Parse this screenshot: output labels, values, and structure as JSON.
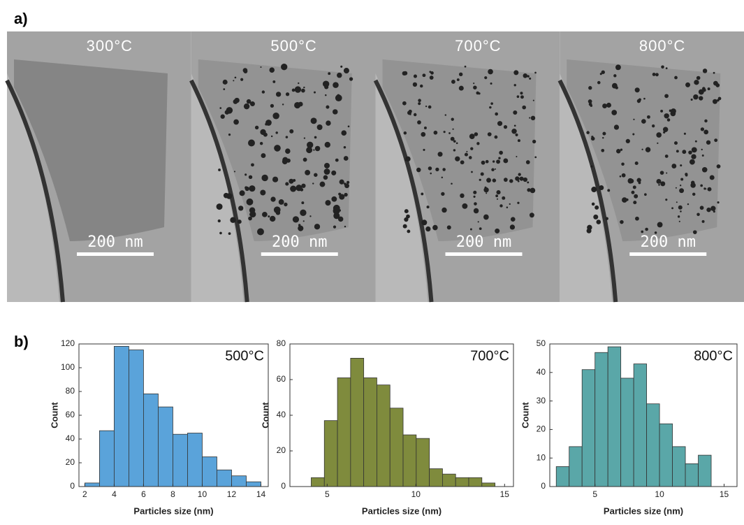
{
  "panel_a": {
    "label": "a)",
    "images": [
      {
        "temperature": "300°C",
        "scale_bar": "200 nm"
      },
      {
        "temperature": "500°C",
        "scale_bar": "200 nm"
      },
      {
        "temperature": "700°C",
        "scale_bar": "200 nm"
      },
      {
        "temperature": "800°C",
        "scale_bar": "200 nm"
      }
    ]
  },
  "panel_b": {
    "label": "b)"
  },
  "chart_data": [
    {
      "type": "histogram",
      "annotation": "500°C",
      "x_label": "Particles size (nm)",
      "y_label": "Count",
      "bins": [
        2,
        3,
        4,
        5,
        6,
        7,
        8,
        9,
        10,
        11,
        12,
        13,
        14
      ],
      "values": [
        3,
        47,
        118,
        115,
        78,
        67,
        44,
        45,
        25,
        14,
        9,
        4
      ],
      "color": "#5aa3da",
      "xlim": [
        1.6,
        14.5
      ],
      "ylim": [
        0,
        120
      ],
      "xticks": [
        2,
        4,
        6,
        8,
        10,
        12,
        14
      ],
      "yticks": [
        0,
        20,
        40,
        60,
        80,
        100,
        120
      ]
    },
    {
      "type": "histogram",
      "annotation": "700°C",
      "x_label": "Particles size (nm)",
      "y_label": "Count",
      "bins": [
        4.1,
        4.84,
        5.58,
        6.32,
        7.06,
        7.8,
        8.54,
        9.28,
        10.02,
        10.76,
        11.5,
        12.24,
        12.98,
        13.72,
        14.46
      ],
      "values": [
        5,
        37,
        61,
        72,
        61,
        57,
        44,
        29,
        27,
        10,
        7,
        5,
        5,
        2
      ],
      "color": "#7f8b3d",
      "xlim": [
        2.9,
        15.5
      ],
      "ylim": [
        0,
        80
      ],
      "xticks": [
        5,
        10,
        15
      ],
      "yticks": [
        0,
        20,
        40,
        60,
        80
      ]
    },
    {
      "type": "histogram",
      "annotation": "800°C",
      "x_label": "Particles size (nm)",
      "y_label": "Count",
      "bins": [
        2,
        3,
        4,
        5,
        6,
        7,
        8,
        9,
        10,
        11,
        12,
        13,
        14
      ],
      "values": [
        7,
        14,
        41,
        47,
        49,
        38,
        43,
        29,
        22,
        14,
        8,
        11
      ],
      "color": "#5aa7a8",
      "xlim": [
        1.5,
        16
      ],
      "ylim": [
        0,
        50
      ],
      "xticks": [
        5,
        10,
        15
      ],
      "yticks": [
        0,
        10,
        20,
        30,
        40,
        50
      ]
    }
  ]
}
